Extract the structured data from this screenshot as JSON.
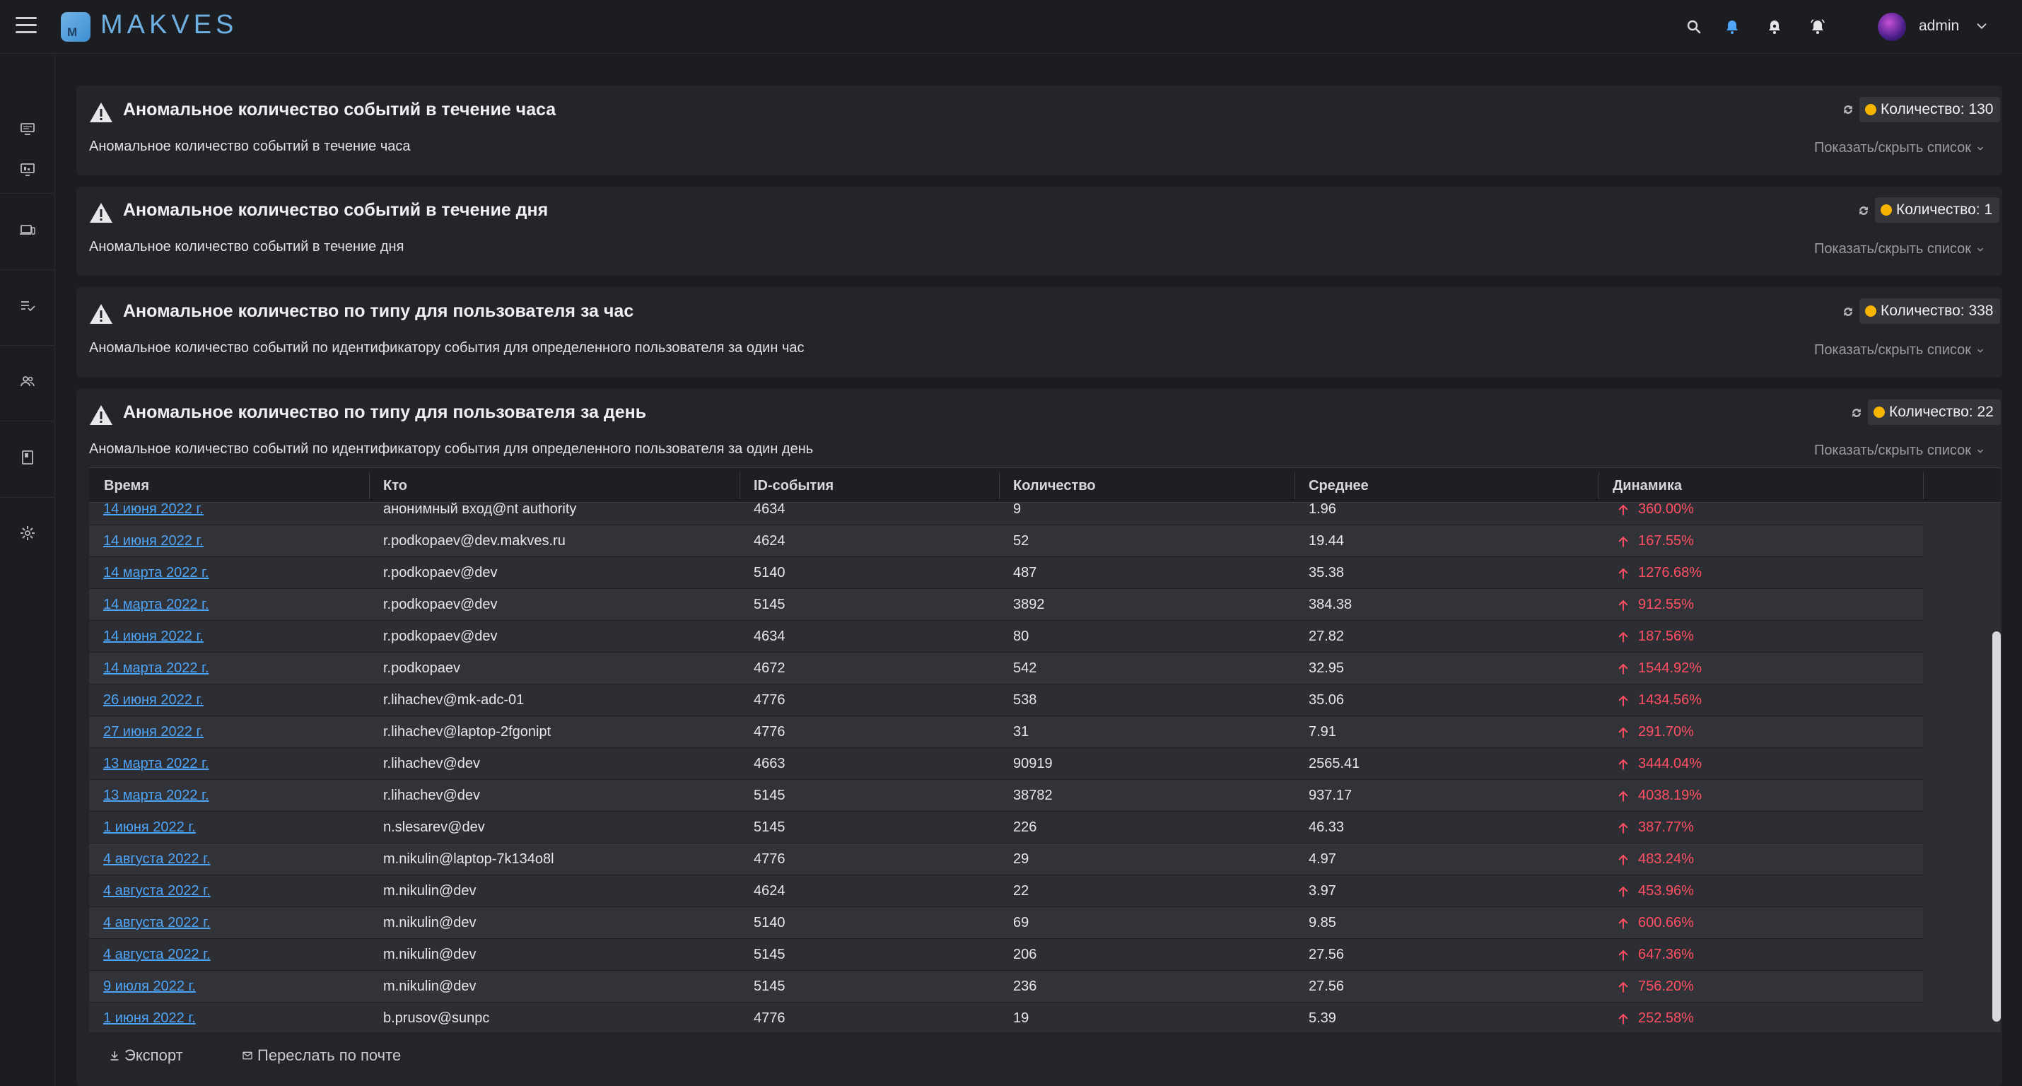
{
  "app": {
    "brand": "MAKVES",
    "logo_letter": "M"
  },
  "header": {
    "user_name": "admin"
  },
  "cards": [
    {
      "title": "Аномальное количество событий в течение часа",
      "description": "Аномальное количество событий в течение часа",
      "count_label": "Количество: 130",
      "toggle_label": "Показать/скрыть список"
    },
    {
      "title": "Аномальное количество событий в течение дня",
      "description": "Аномальное количество событий в течение дня",
      "count_label": "Количество: 1",
      "toggle_label": "Показать/скрыть список"
    },
    {
      "title": "Аномальное количество по типу для пользователя за час",
      "description": "Аномальное количество событий по идентификатору события для определенного пользователя за один час",
      "count_label": "Количество: 338",
      "toggle_label": "Показать/скрыть список"
    },
    {
      "title": "Аномальное количество по типу для пользователя за день",
      "description": "Аномальное количество событий по идентификатору события для определенного пользователя за один день",
      "count_label": "Количество: 22",
      "toggle_label": "Показать/скрыть список"
    }
  ],
  "table": {
    "columns": [
      "Время",
      "Кто",
      "ID-события",
      "Количество",
      "Среднее",
      "Динамика"
    ],
    "rows": [
      [
        "14 июня 2022 г.",
        "анонимный вход@nt authority",
        "4634",
        "9",
        "1.96",
        "360.00%"
      ],
      [
        "14 июня 2022 г.",
        "r.podkopaev@dev.makves.ru",
        "4624",
        "52",
        "19.44",
        "167.55%"
      ],
      [
        "14 марта 2022 г.",
        "r.podkopaev@dev",
        "5140",
        "487",
        "35.38",
        "1276.68%"
      ],
      [
        "14 марта 2022 г.",
        "r.podkopaev@dev",
        "5145",
        "3892",
        "384.38",
        "912.55%"
      ],
      [
        "14 июня 2022 г.",
        "r.podkopaev@dev",
        "4634",
        "80",
        "27.82",
        "187.56%"
      ],
      [
        "14 марта 2022 г.",
        "r.podkopaev",
        "4672",
        "542",
        "32.95",
        "1544.92%"
      ],
      [
        "26 июня 2022 г.",
        "r.lihachev@mk-adc-01",
        "4776",
        "538",
        "35.06",
        "1434.56%"
      ],
      [
        "27 июня 2022 г.",
        "r.lihachev@laptop-2fgonipt",
        "4776",
        "31",
        "7.91",
        "291.70%"
      ],
      [
        "13 марта 2022 г.",
        "r.lihachev@dev",
        "4663",
        "90919",
        "2565.41",
        "3444.04%"
      ],
      [
        "13 марта 2022 г.",
        "r.lihachev@dev",
        "5145",
        "38782",
        "937.17",
        "4038.19%"
      ],
      [
        "1 июня 2022 г.",
        "n.slesarev@dev",
        "5145",
        "226",
        "46.33",
        "387.77%"
      ],
      [
        "4 августа 2022 г.",
        "m.nikulin@laptop-7k134o8l",
        "4776",
        "29",
        "4.97",
        "483.24%"
      ],
      [
        "4 августа 2022 г.",
        "m.nikulin@dev",
        "4624",
        "22",
        "3.97",
        "453.96%"
      ],
      [
        "4 августа 2022 г.",
        "m.nikulin@dev",
        "5140",
        "69",
        "9.85",
        "600.66%"
      ],
      [
        "4 августа 2022 г.",
        "m.nikulin@dev",
        "5145",
        "206",
        "27.56",
        "647.36%"
      ],
      [
        "9 июля 2022 г.",
        "m.nikulin@dev",
        "5145",
        "236",
        "27.56",
        "756.20%"
      ],
      [
        "1 июня 2022 г.",
        "b.prusov@sunpc",
        "4776",
        "19",
        "5.39",
        "252.58%"
      ]
    ]
  },
  "footer": {
    "export_label": "Экспорт",
    "email_label": "Переслать по почте"
  },
  "colors": {
    "accent": "#4ea4f6",
    "danger": "#ff4f63",
    "status_dot": "#f7b500",
    "brand": "#6fb0e2"
  }
}
